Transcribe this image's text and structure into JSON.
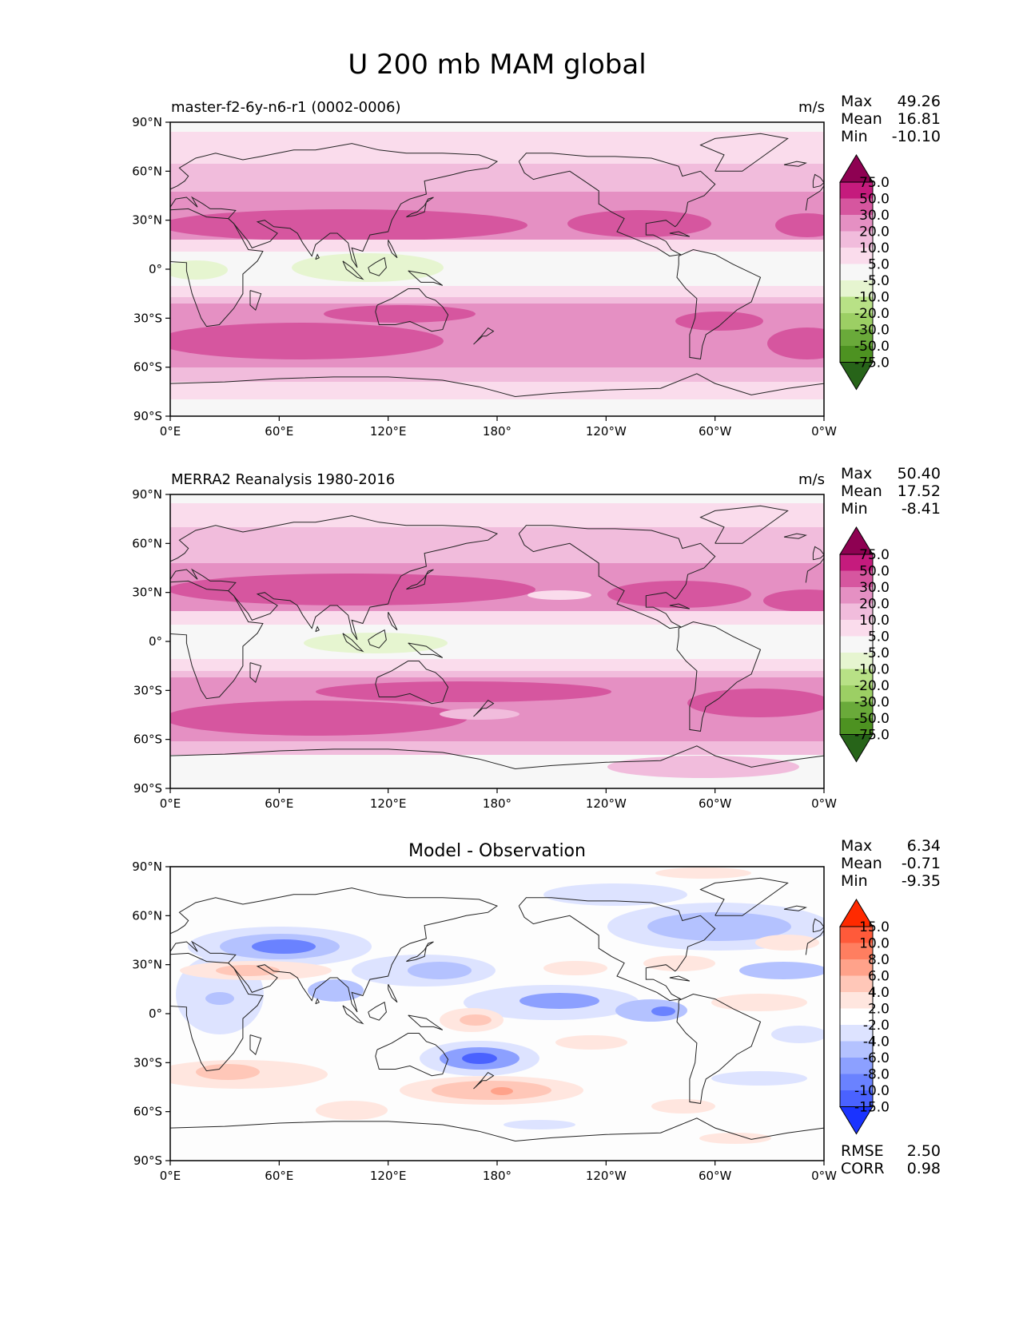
{
  "title": "U 200 mb MAM global",
  "lon_ticks": [
    "0°E",
    "60°E",
    "120°E",
    "180°",
    "120°W",
    "60°W",
    "0°W"
  ],
  "lat_ticks": [
    "90°N",
    "60°N",
    "30°N",
    "0°",
    "30°S",
    "60°S",
    "90°S"
  ],
  "panels": [
    {
      "id": "model",
      "title_left": "master-f2-6y-n6-r1 (0002-0006)",
      "title_center": "",
      "units": "m/s",
      "stats": {
        "max_label": "Max",
        "max": "49.26",
        "mean_label": "Mean",
        "mean": "16.81",
        "min_label": "Min",
        "min": "-10.10"
      },
      "colorbar_labels": [
        "75.0",
        "50.0",
        "30.0",
        "20.0",
        "10.0",
        "5.0",
        "-5.0",
        "-10.0",
        "-20.0",
        "-30.0",
        "-50.0",
        "-75.0"
      ]
    },
    {
      "id": "obs",
      "title_left": "MERRA2 Reanalysis 1980-2016",
      "title_center": "",
      "units": "m/s",
      "stats": {
        "max_label": "Max",
        "max": "50.40",
        "mean_label": "Mean",
        "mean": "17.52",
        "min_label": "Min",
        "min": "-8.41"
      },
      "colorbar_labels": [
        "75.0",
        "50.0",
        "30.0",
        "20.0",
        "10.0",
        "5.0",
        "-5.0",
        "-10.0",
        "-20.0",
        "-30.0",
        "-50.0",
        "-75.0"
      ]
    },
    {
      "id": "diff",
      "title_left": "",
      "title_center": "Model - Observation",
      "units": "",
      "stats": {
        "max_label": "Max",
        "max": "6.34",
        "mean_label": "Mean",
        "mean": "-0.71",
        "min_label": "Min",
        "min": "-9.35"
      },
      "colorbar_labels": [
        "15.0",
        "10.0",
        "8.0",
        "6.0",
        "4.0",
        "2.0",
        "-2.0",
        "-4.0",
        "-6.0",
        "-8.0",
        "-10.0",
        "-15.0"
      ],
      "metrics": {
        "rmse_label": "RMSE",
        "rmse": "2.50",
        "corr_label": "CORR",
        "corr": "0.98"
      }
    }
  ],
  "colors": {
    "abs_scale": [
      "#8e0152",
      "#c51b7d",
      "#d6569f",
      "#e590c3",
      "#f1bcdc",
      "#fadcec",
      "#f7f7f7",
      "#e6f5d0",
      "#b8e186",
      "#9ccf64",
      "#6aaa3a",
      "#4d9221",
      "#276419"
    ],
    "diff_scale": [
      "#ff2a00",
      "#ff5a3a",
      "#ff7e60",
      "#ffa28a",
      "#ffc7b8",
      "#ffe6df",
      "#ffffff",
      "#dde3ff",
      "#b4c2ff",
      "#8ca0ff",
      "#6a82ff",
      "#4a62ff",
      "#1a33ff"
    ],
    "coast": "#222222"
  }
}
